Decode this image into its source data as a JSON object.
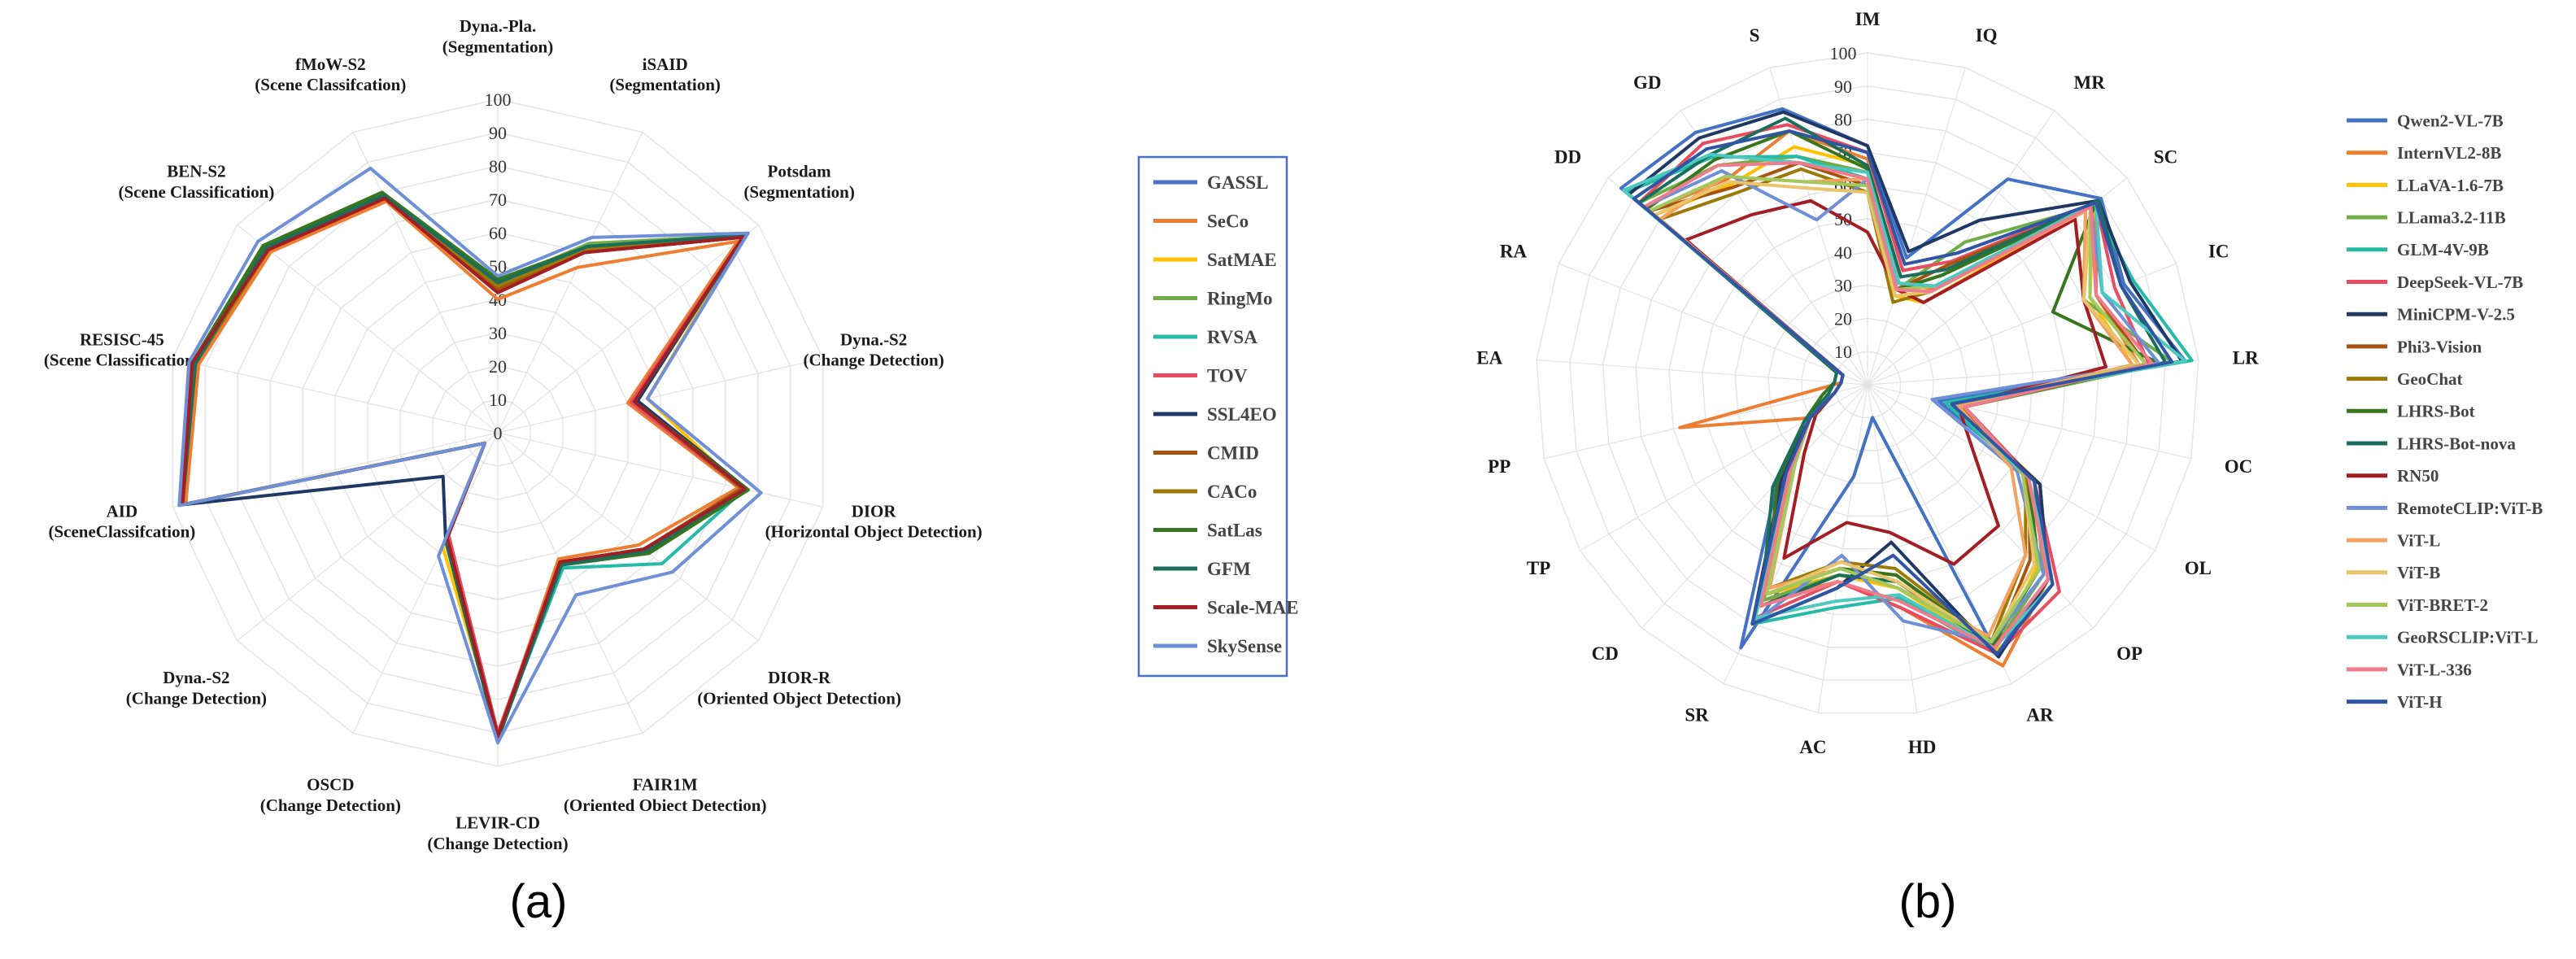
{
  "panel_labels": [
    "(a)",
    "(b)"
  ],
  "chart_data": [
    {
      "type": "radar",
      "panel": "(a)",
      "title": "",
      "rlim": [
        0,
        100
      ],
      "ticks": [
        "0",
        "10",
        "20",
        "30",
        "40",
        "50",
        "60",
        "70",
        "80",
        "90",
        "100"
      ],
      "axes": [
        {
          "name": "Dyna.-Pla.",
          "task": "(Segmentation)"
        },
        {
          "name": "iSAID",
          "task": "(Segmentation)"
        },
        {
          "name": "Potsdam",
          "task": "(Segmentation)"
        },
        {
          "name": "Dyna.-S2",
          "task": "(Change Detection)"
        },
        {
          "name": "DIOR",
          "task": "(Horizontal Object Detection)"
        },
        {
          "name": "DIOR-R",
          "task": "(Oriented Object Detection)"
        },
        {
          "name": "FAIR1M",
          "task": "(Oriented Obiect Detection)"
        },
        {
          "name": "LEVIR-CD",
          "task": "(Change Detection)"
        },
        {
          "name": "OSCD",
          "task": "(Change Detection)"
        },
        {
          "name": "Dyna.-S2",
          "task": "(Change Detection)"
        },
        {
          "name": "AID",
          "task": "(SceneClassifcation)"
        },
        {
          "name": "RESISC-45",
          "task": "(Scene Classification)"
        },
        {
          "name": "BEN-S2",
          "task": "(Scene Classification)"
        },
        {
          "name": "fMoW-S2",
          "task": "(Scene Classifcation)"
        }
      ],
      "legend_position": "right",
      "series": [
        {
          "name": "GASSL",
          "color": "#4472c4",
          "values": [
            44,
            60,
            94,
            42,
            76,
            56,
            43,
            92,
            36,
            5,
            96,
            93,
            89,
            79
          ]
        },
        {
          "name": "SeCo",
          "color": "#ed7d31",
          "values": [
            40,
            55,
            92,
            40,
            74,
            54,
            42,
            91,
            34,
            5,
            96,
            92,
            87,
            77
          ]
        },
        {
          "name": "SatMAE",
          "color": "#ffc000",
          "values": [
            43,
            62,
            94,
            46,
            75,
            57,
            44,
            90,
            38,
            5,
            97,
            93,
            88,
            78
          ]
        },
        {
          "name": "RingMo",
          "color": "#70ad47",
          "values": [
            45,
            63,
            95,
            42,
            77,
            58,
            44,
            92,
            36,
            5,
            97,
            94,
            90,
            80
          ]
        },
        {
          "name": "RVSA",
          "color": "#26bba8",
          "values": [
            44,
            62,
            95,
            42,
            76,
            63,
            45,
            91,
            35,
            5,
            97,
            93,
            89,
            79
          ]
        },
        {
          "name": "TOV",
          "color": "#e84c5e",
          "values": [
            42,
            61,
            94,
            41,
            75,
            57,
            43,
            90,
            34,
            5,
            97,
            94,
            88,
            78
          ]
        },
        {
          "name": "SSL4EO",
          "color": "#203864",
          "values": [
            45,
            61,
            94,
            43,
            77,
            57,
            44,
            92,
            36,
            21,
            97,
            93,
            89,
            79
          ]
        },
        {
          "name": "CMID",
          "color": "#a5530f",
          "values": [
            43,
            60,
            94,
            42,
            75,
            56,
            43,
            91,
            35,
            5,
            97,
            93,
            88,
            78
          ]
        },
        {
          "name": "CACo",
          "color": "#9c7a08",
          "values": [
            44,
            61,
            94,
            42,
            76,
            56,
            43,
            91,
            35,
            5,
            97,
            93,
            88,
            78
          ]
        },
        {
          "name": "SatLas",
          "color": "#38761d",
          "values": [
            46,
            62,
            95,
            42,
            77,
            58,
            44,
            92,
            36,
            5,
            97,
            94,
            90,
            80
          ]
        },
        {
          "name": "GFM",
          "color": "#1b6e5c",
          "values": [
            45,
            62,
            95,
            42,
            76,
            57,
            44,
            92,
            36,
            5,
            97,
            93,
            89,
            79
          ]
        },
        {
          "name": "Scale-MAE",
          "color": "#a31d24",
          "values": [
            42,
            60,
            94,
            42,
            76,
            56,
            43,
            91,
            35,
            5,
            97,
            94,
            88,
            78
          ]
        },
        {
          "name": "SkySense",
          "color": "#6f90d6",
          "values": [
            47,
            65,
            96,
            46,
            81,
            67,
            54,
            93,
            41,
            5,
            98,
            95,
            92,
            88
          ]
        }
      ]
    },
    {
      "type": "radar",
      "panel": "(b)",
      "title": "",
      "rlim": [
        0,
        100
      ],
      "ticks": [
        "10",
        "20",
        "30",
        "40",
        "50",
        "60",
        "70",
        "80",
        "90",
        "100"
      ],
      "axes": [
        "IM",
        "IQ",
        "MR",
        "SC",
        "IC",
        "LR",
        "OC",
        "OL",
        "OP",
        "AR",
        "HD",
        "AC",
        "SR",
        "CD",
        "TP",
        "PP",
        "EA",
        "RA",
        "DD",
        "GD",
        "S"
      ],
      "legend_position": "right",
      "series": [
        {
          "name": "Qwen2-VL-7B",
          "color": "#4472c4",
          "values": [
            72,
            40,
            75,
            90,
            83,
            96,
            22,
            60,
            80,
            90,
            10,
            28,
            88,
            40,
            20,
            10,
            8,
            8,
            95,
            92,
            87
          ]
        },
        {
          "name": "InternVL2-8B",
          "color": "#ed7d31",
          "values": [
            68,
            32,
            35,
            88,
            74,
            82,
            28,
            60,
            80,
            94,
            68,
            60,
            72,
            35,
            20,
            58,
            8,
            8,
            84,
            75,
            80
          ]
        },
        {
          "name": "LLaVA-1.6-7B",
          "color": "#ffc000",
          "values": [
            66,
            28,
            30,
            87,
            72,
            80,
            30,
            55,
            75,
            89,
            62,
            58,
            70,
            34,
            20,
            10,
            8,
            8,
            82,
            73,
            75
          ]
        },
        {
          "name": "LLama3.2-11B",
          "color": "#70ad47",
          "values": [
            64,
            30,
            52,
            86,
            70,
            92,
            30,
            58,
            78,
            88,
            60,
            58,
            72,
            34,
            20,
            10,
            8,
            8,
            88,
            80,
            72
          ]
        },
        {
          "name": "GLM-4V-9B",
          "color": "#26bba8",
          "values": [
            62,
            30,
            40,
            87,
            86,
            98,
            24,
            55,
            82,
            90,
            65,
            68,
            80,
            36,
            20,
            10,
            8,
            8,
            93,
            83,
            72
          ]
        },
        {
          "name": "DeepSeek-VL-7B",
          "color": "#e84c5e",
          "values": [
            70,
            36,
            45,
            88,
            80,
            85,
            30,
            58,
            85,
            90,
            68,
            60,
            78,
            36,
            20,
            10,
            8,
            8,
            88,
            88,
            82
          ]
        },
        {
          "name": "MiniCPM-V-2.5",
          "color": "#203864",
          "values": [
            72,
            42,
            60,
            89,
            85,
            95,
            26,
            60,
            80,
            91,
            48,
            62,
            80,
            38,
            20,
            10,
            8,
            8,
            92,
            90,
            86
          ]
        },
        {
          "name": "Phi3-Vision",
          "color": "#a5530f",
          "values": [
            60,
            30,
            44,
            86,
            74,
            84,
            28,
            56,
            72,
            88,
            58,
            56,
            70,
            32,
            20,
            10,
            8,
            8,
            84,
            72,
            70
          ]
        },
        {
          "name": "GeoChat",
          "color": "#9c7a08",
          "values": [
            58,
            26,
            34,
            84,
            70,
            82,
            30,
            55,
            70,
            86,
            56,
            54,
            68,
            32,
            20,
            10,
            8,
            8,
            80,
            70,
            68
          ]
        },
        {
          "name": "LHRS-Bot",
          "color": "#38761d",
          "values": [
            65,
            30,
            40,
            88,
            60,
            88,
            30,
            56,
            76,
            87,
            58,
            56,
            70,
            40,
            22,
            14,
            10,
            10,
            85,
            82,
            80
          ]
        },
        {
          "name": "LHRS-Bot-nova",
          "color": "#1b6e5c",
          "values": [
            66,
            34,
            42,
            89,
            82,
            90,
            26,
            58,
            80,
            88,
            60,
            58,
            74,
            42,
            22,
            12,
            10,
            10,
            88,
            84,
            84
          ]
        },
        {
          "name": "RN50",
          "color": "#a31d24",
          "values": [
            46,
            30,
            30,
            80,
            70,
            72,
            28,
            36,
            58,
            60,
            45,
            42,
            58,
            28,
            18,
            10,
            8,
            8,
            70,
            62,
            58
          ]
        },
        {
          "name": "RemoteCLIP:ViT-B",
          "color": "#6f90d6",
          "values": [
            62,
            32,
            36,
            86,
            76,
            88,
            20,
            52,
            78,
            86,
            72,
            52,
            80,
            34,
            20,
            10,
            8,
            8,
            86,
            78,
            52
          ]
        },
        {
          "name": "ViT-L",
          "color": "#f4a261",
          "values": [
            62,
            30,
            34,
            84,
            70,
            80,
            28,
            50,
            70,
            84,
            62,
            56,
            68,
            32,
            20,
            10,
            8,
            8,
            80,
            76,
            64
          ]
        },
        {
          "name": "ViT-B",
          "color": "#e9c46a",
          "values": [
            58,
            28,
            34,
            86,
            70,
            82,
            30,
            54,
            74,
            86,
            60,
            54,
            70,
            32,
            20,
            10,
            8,
            8,
            82,
            74,
            62
          ]
        },
        {
          "name": "ViT-BRET-2",
          "color": "#a3c85c",
          "values": [
            60,
            30,
            36,
            86,
            72,
            84,
            30,
            54,
            76,
            86,
            62,
            56,
            70,
            32,
            20,
            10,
            8,
            8,
            84,
            76,
            64
          ]
        },
        {
          "name": "GeoRSCLIP:ViT-L",
          "color": "#4cc9c0",
          "values": [
            64,
            32,
            36,
            88,
            76,
            96,
            26,
            56,
            82,
            88,
            64,
            66,
            78,
            34,
            20,
            10,
            8,
            8,
            94,
            84,
            70
          ]
        },
        {
          "name": "ViT-L-336",
          "color": "#f07b8a",
          "values": [
            62,
            30,
            34,
            86,
            74,
            86,
            30,
            56,
            80,
            88,
            66,
            60,
            74,
            34,
            20,
            10,
            8,
            8,
            86,
            80,
            70
          ]
        },
        {
          "name": "ViT-H",
          "color": "#2f55a4",
          "values": [
            70,
            38,
            48,
            88,
            82,
            92,
            26,
            58,
            82,
            90,
            52,
            62,
            80,
            36,
            20,
            10,
            8,
            8,
            90,
            86,
            80
          ]
        }
      ]
    }
  ]
}
